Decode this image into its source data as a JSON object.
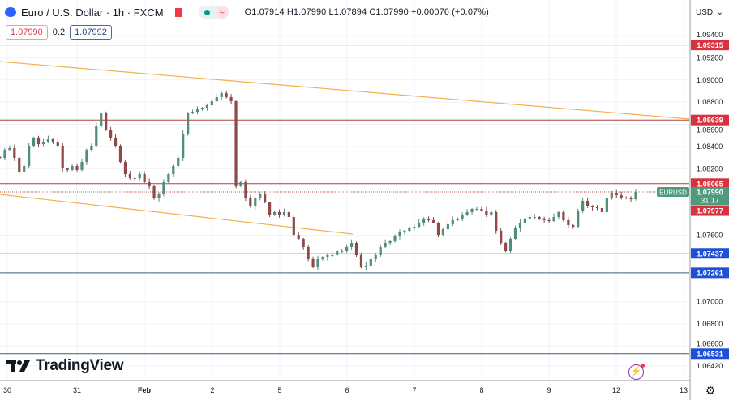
{
  "header": {
    "symbol_title": "Euro / U.S. Dollar · 1h · FXCM",
    "ohlc": "O1.07914 H1.07990 L1.07894 C1.07990 +0.00076 (+0.07%)",
    "wave_icon": "≈",
    "bid": "1.07990",
    "spread": "0.2",
    "ask": "1.07992"
  },
  "currency_select": {
    "label": "USD",
    "chevron": "⌄"
  },
  "logo": {
    "text": "TradingView",
    "mark": "17"
  },
  "icons": {
    "settings": "⚙",
    "bolt": "⚡"
  },
  "colors": {
    "up": "#089981",
    "down": "#f23645",
    "upBody": "#4f8f7a",
    "downBody": "#8e4a4a",
    "resistance": "#f23645",
    "support": "#2962ff",
    "trend": "#f0b04a",
    "current": "#4f9a7d"
  },
  "chart_data": {
    "type": "candlestick",
    "symbol": "EURUSD",
    "timeframe": "1h",
    "ylim": [
      1.0635,
      1.0955
    ],
    "y_ticks": [
      "1.09400",
      "1.09200",
      "1.09000",
      "1.08800",
      "1.08600",
      "1.08400",
      "1.08200",
      "1.07600",
      "1.07000",
      "1.06800",
      "1.06600",
      "1.06420"
    ],
    "x_ticks": [
      "30",
      "31",
      "Feb",
      "2",
      "5",
      "6",
      "7",
      "8",
      "9",
      "12",
      "13"
    ],
    "closes": [
      1.08297,
      1.0837,
      1.08385,
      1.08297,
      1.08173,
      1.08224,
      1.08407,
      1.0848,
      1.08421,
      1.08443,
      1.08465,
      1.08443,
      1.08407,
      1.08202,
      1.08188,
      1.08224,
      1.08188,
      1.0826,
      1.0837,
      1.08407,
      1.08589,
      1.08699,
      1.08553,
      1.0848,
      1.08407,
      1.0826,
      1.08151,
      1.08114,
      1.08114,
      1.08151,
      1.08078,
      1.08041,
      1.07932,
      1.07968,
      1.08078,
      1.08151,
      1.08224,
      1.08297,
      1.08516,
      1.08699,
      1.08713,
      1.08735,
      1.0875,
      1.08772,
      1.08808,
      1.08845,
      1.08881,
      1.08845,
      1.08808,
      1.08041,
      1.08078,
      1.07932,
      1.07859,
      1.07932,
      1.07968,
      1.07895,
      1.07786,
      1.07808,
      1.07786,
      1.07808,
      1.07764,
      1.07603,
      1.07567,
      1.07494,
      1.07384,
      1.07311,
      1.07384,
      1.07399,
      1.07421,
      1.07421,
      1.07457,
      1.07457,
      1.07494,
      1.0753,
      1.07421,
      1.07311,
      1.07326,
      1.07384,
      1.07421,
      1.07494,
      1.0753,
      1.07545,
      1.07589,
      1.07625,
      1.0764,
      1.07662,
      1.07676,
      1.07713,
      1.0775,
      1.07735,
      1.07713,
      1.07603,
      1.07654,
      1.07698,
      1.07735,
      1.0775,
      1.07786,
      1.07808,
      1.07837,
      1.07837,
      1.07822,
      1.07786,
      1.07808,
      1.0764,
      1.0753,
      1.07457,
      1.07567,
      1.07662,
      1.07713,
      1.0775,
      1.07764,
      1.07764,
      1.0775,
      1.07735,
      1.07727,
      1.07764,
      1.07808,
      1.07735,
      1.07691,
      1.07676,
      1.07822,
      1.0791,
      1.07859,
      1.07852,
      1.07844,
      1.07808,
      1.07932,
      1.07983,
      1.07961,
      1.07939,
      1.07932,
      1.07925,
      1.0799
    ],
    "levels": [
      {
        "price": "1.09315",
        "kind": "resistance"
      },
      {
        "price": "1.08639",
        "kind": "resistance"
      },
      {
        "price": "1.08065",
        "kind": "resistance"
      },
      {
        "price": "1.07977",
        "kind": "resistance-label"
      },
      {
        "price": "1.07437",
        "kind": "support"
      },
      {
        "price": "1.07261",
        "kind": "support"
      },
      {
        "price": "1.06531",
        "kind": "support"
      }
    ],
    "trendlines": [
      {
        "from": 1.09166,
        "to": 1.08648,
        "span": "30 → 13"
      },
      {
        "from": 1.07968,
        "to": 1.0761,
        "span": "30 → 6"
      }
    ],
    "current": {
      "label": "EURUSD",
      "price": "1.07990",
      "countdown": "31:17"
    }
  }
}
